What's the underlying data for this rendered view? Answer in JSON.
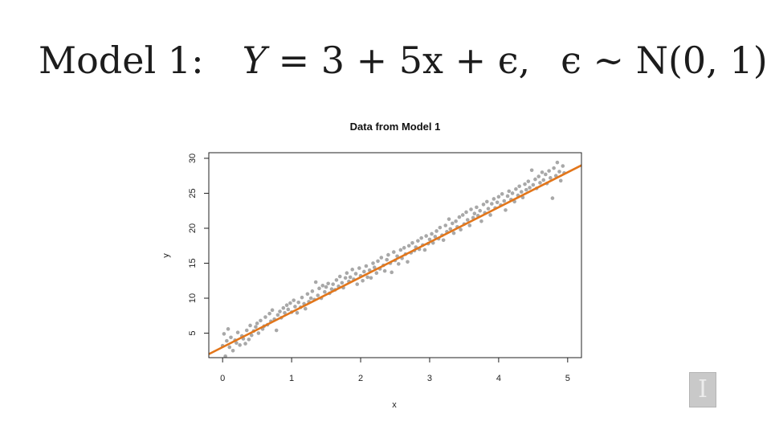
{
  "equation": {
    "prefix": "Model 1:",
    "lhs": "Y",
    "rhs": "= 3 + 5x + ϵ,",
    "noise": "ϵ ∼ N(0, 1)"
  },
  "logo": {
    "glyph": "I"
  },
  "chart_data": {
    "type": "scatter",
    "title": "Data from Model 1",
    "xlabel": "x",
    "ylabel": "y",
    "xlim": [
      -0.2,
      5.2
    ],
    "ylim": [
      1.5,
      30.8
    ],
    "xticks": [
      0,
      1,
      2,
      3,
      4,
      5
    ],
    "yticks": [
      5,
      10,
      15,
      20,
      25,
      30
    ],
    "grid": false,
    "legend": "none",
    "point_color": "#a8a8a8",
    "line_color": "#e2761b",
    "fit_line": {
      "intercept": 3,
      "slope": 5
    },
    "points": [
      [
        0.0,
        3.2
      ],
      [
        0.02,
        4.9
      ],
      [
        0.04,
        1.7
      ],
      [
        0.06,
        3.9
      ],
      [
        0.08,
        5.6
      ],
      [
        0.1,
        3.0
      ],
      [
        0.12,
        4.4
      ],
      [
        0.15,
        2.5
      ],
      [
        0.18,
        4.0
      ],
      [
        0.2,
        3.6
      ],
      [
        0.22,
        5.1
      ],
      [
        0.25,
        3.3
      ],
      [
        0.28,
        4.6
      ],
      [
        0.3,
        4.2
      ],
      [
        0.33,
        3.5
      ],
      [
        0.35,
        5.4
      ],
      [
        0.38,
        4.1
      ],
      [
        0.4,
        6.1
      ],
      [
        0.42,
        4.7
      ],
      [
        0.45,
        5.3
      ],
      [
        0.48,
        5.9
      ],
      [
        0.5,
        6.4
      ],
      [
        0.52,
        5.0
      ],
      [
        0.55,
        6.8
      ],
      [
        0.58,
        5.6
      ],
      [
        0.6,
        6.0
      ],
      [
        0.62,
        7.3
      ],
      [
        0.65,
        6.2
      ],
      [
        0.68,
        7.8
      ],
      [
        0.7,
        6.7
      ],
      [
        0.72,
        8.3
      ],
      [
        0.75,
        7.0
      ],
      [
        0.78,
        5.4
      ],
      [
        0.8,
        7.6
      ],
      [
        0.83,
        8.1
      ],
      [
        0.85,
        7.2
      ],
      [
        0.88,
        8.6
      ],
      [
        0.9,
        7.9
      ],
      [
        0.93,
        9.0
      ],
      [
        0.95,
        8.4
      ],
      [
        0.98,
        9.3
      ],
      [
        1.0,
        8.0
      ],
      [
        1.03,
        9.7
      ],
      [
        1.05,
        8.8
      ],
      [
        1.08,
        7.9
      ],
      [
        1.1,
        9.4
      ],
      [
        1.13,
        8.7
      ],
      [
        1.15,
        10.1
      ],
      [
        1.18,
        9.2
      ],
      [
        1.2,
        8.5
      ],
      [
        1.23,
        10.6
      ],
      [
        1.25,
        9.5
      ],
      [
        1.28,
        10.0
      ],
      [
        1.3,
        11.0
      ],
      [
        1.33,
        9.8
      ],
      [
        1.35,
        12.3
      ],
      [
        1.38,
        10.4
      ],
      [
        1.4,
        11.4
      ],
      [
        1.43,
        10.0
      ],
      [
        1.45,
        11.8
      ],
      [
        1.48,
        10.9
      ],
      [
        1.5,
        11.6
      ],
      [
        1.53,
        12.1
      ],
      [
        1.55,
        10.7
      ],
      [
        1.58,
        11.3
      ],
      [
        1.6,
        12.0
      ],
      [
        1.63,
        11.2
      ],
      [
        1.65,
        12.6
      ],
      [
        1.68,
        11.7
      ],
      [
        1.7,
        13.1
      ],
      [
        1.73,
        12.2
      ],
      [
        1.75,
        11.5
      ],
      [
        1.78,
        12.9
      ],
      [
        1.8,
        13.6
      ],
      [
        1.83,
        12.4
      ],
      [
        1.85,
        13.0
      ],
      [
        1.88,
        14.1
      ],
      [
        1.9,
        12.7
      ],
      [
        1.93,
        13.5
      ],
      [
        1.95,
        12.0
      ],
      [
        1.98,
        14.3
      ],
      [
        2.0,
        13.2
      ],
      [
        2.03,
        12.5
      ],
      [
        2.05,
        13.8
      ],
      [
        2.08,
        14.6
      ],
      [
        2.1,
        13.0
      ],
      [
        2.13,
        14.0
      ],
      [
        2.15,
        12.9
      ],
      [
        2.18,
        15.0
      ],
      [
        2.2,
        14.4
      ],
      [
        2.23,
        13.6
      ],
      [
        2.25,
        15.3
      ],
      [
        2.28,
        14.2
      ],
      [
        2.3,
        15.8
      ],
      [
        2.33,
        14.7
      ],
      [
        2.35,
        13.9
      ],
      [
        2.38,
        15.5
      ],
      [
        2.4,
        16.2
      ],
      [
        2.43,
        15.0
      ],
      [
        2.45,
        13.7
      ],
      [
        2.48,
        16.6
      ],
      [
        2.5,
        15.4
      ],
      [
        2.53,
        16.0
      ],
      [
        2.55,
        14.9
      ],
      [
        2.58,
        16.9
      ],
      [
        2.6,
        15.7
      ],
      [
        2.63,
        17.2
      ],
      [
        2.65,
        16.3
      ],
      [
        2.68,
        15.2
      ],
      [
        2.7,
        17.5
      ],
      [
        2.73,
        16.5
      ],
      [
        2.75,
        17.9
      ],
      [
        2.78,
        16.8
      ],
      [
        2.8,
        17.3
      ],
      [
        2.83,
        18.2
      ],
      [
        2.85,
        17.0
      ],
      [
        2.88,
        18.6
      ],
      [
        2.9,
        17.6
      ],
      [
        2.93,
        16.9
      ],
      [
        2.95,
        18.9
      ],
      [
        2.98,
        17.8
      ],
      [
        3.0,
        18.4
      ],
      [
        3.03,
        19.2
      ],
      [
        3.05,
        17.9
      ],
      [
        3.08,
        18.8
      ],
      [
        3.1,
        19.6
      ],
      [
        3.13,
        18.5
      ],
      [
        3.15,
        20.1
      ],
      [
        3.18,
        19.0
      ],
      [
        3.2,
        18.3
      ],
      [
        3.23,
        20.4
      ],
      [
        3.25,
        19.5
      ],
      [
        3.28,
        21.3
      ],
      [
        3.3,
        19.9
      ],
      [
        3.33,
        20.7
      ],
      [
        3.35,
        19.3
      ],
      [
        3.38,
        21.0
      ],
      [
        3.4,
        20.2
      ],
      [
        3.43,
        21.6
      ],
      [
        3.45,
        19.8
      ],
      [
        3.48,
        21.9
      ],
      [
        3.5,
        20.6
      ],
      [
        3.53,
        22.3
      ],
      [
        3.55,
        21.2
      ],
      [
        3.58,
        20.4
      ],
      [
        3.6,
        22.7
      ],
      [
        3.63,
        21.5
      ],
      [
        3.65,
        22.1
      ],
      [
        3.68,
        23.0
      ],
      [
        3.7,
        21.8
      ],
      [
        3.73,
        22.5
      ],
      [
        3.75,
        21.0
      ],
      [
        3.78,
        23.4
      ],
      [
        3.8,
        22.2
      ],
      [
        3.83,
        23.8
      ],
      [
        3.85,
        22.8
      ],
      [
        3.88,
        21.9
      ],
      [
        3.9,
        23.5
      ],
      [
        3.93,
        24.2
      ],
      [
        3.95,
        22.9
      ],
      [
        3.98,
        23.7
      ],
      [
        4.0,
        24.5
      ],
      [
        4.03,
        23.3
      ],
      [
        4.05,
        24.9
      ],
      [
        4.08,
        23.9
      ],
      [
        4.1,
        22.6
      ],
      [
        4.13,
        24.6
      ],
      [
        4.15,
        25.3
      ],
      [
        4.18,
        24.1
      ],
      [
        4.2,
        25.0
      ],
      [
        4.23,
        23.8
      ],
      [
        4.25,
        25.6
      ],
      [
        4.28,
        24.7
      ],
      [
        4.3,
        26.0
      ],
      [
        4.33,
        25.2
      ],
      [
        4.35,
        24.4
      ],
      [
        4.38,
        26.3
      ],
      [
        4.4,
        25.5
      ],
      [
        4.43,
        26.7
      ],
      [
        4.45,
        25.8
      ],
      [
        4.48,
        28.3
      ],
      [
        4.5,
        26.2
      ],
      [
        4.53,
        27.0
      ],
      [
        4.55,
        25.7
      ],
      [
        4.58,
        27.4
      ],
      [
        4.6,
        26.5
      ],
      [
        4.63,
        28.0
      ],
      [
        4.65,
        26.9
      ],
      [
        4.68,
        27.7
      ],
      [
        4.7,
        26.4
      ],
      [
        4.73,
        28.2
      ],
      [
        4.75,
        27.2
      ],
      [
        4.78,
        24.3
      ],
      [
        4.8,
        28.6
      ],
      [
        4.83,
        27.5
      ],
      [
        4.85,
        29.4
      ],
      [
        4.88,
        28.1
      ],
      [
        4.9,
        26.8
      ],
      [
        4.93,
        28.9
      ],
      [
        4.95,
        27.9
      ]
    ]
  }
}
